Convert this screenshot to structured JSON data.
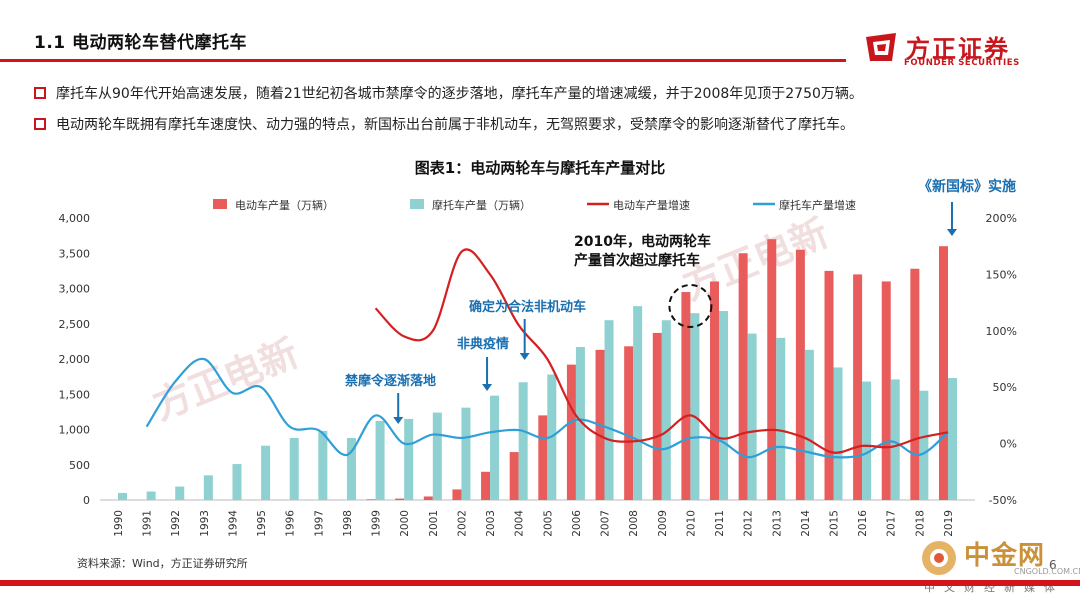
{
  "header": {
    "title": "1.1 电动两轮车替代摩托车",
    "logo_cn": "方正证券",
    "logo_en": "FOUNDER SECURITIES",
    "brand_color": "#c8161d"
  },
  "bullets": [
    "摩托车从90年代开始高速发展，随着21世纪初各城市禁摩令的逐步落地，摩托车产量的增速减缓，并于2008年见顶于2750万辆。",
    "电动两轮车既拥有摩托车速度快、动力强的特点，新国标出台前属于非机动车，无驾照要求，受禁摩令的影响逐渐替代了摩托车。"
  ],
  "chart_data": {
    "type": "bar",
    "title": "图表1：电动两轮车与摩托车产量对比",
    "categories": [
      "1990",
      "1991",
      "1992",
      "1993",
      "1994",
      "1995",
      "1996",
      "1997",
      "1998",
      "1999",
      "2000",
      "2001",
      "2002",
      "2003",
      "2004",
      "2005",
      "2006",
      "2007",
      "2008",
      "2009",
      "2010",
      "2011",
      "2012",
      "2013",
      "2014",
      "2015",
      "2016",
      "2017",
      "2018",
      "2019"
    ],
    "series": [
      {
        "name": "电动车产量（万辆）",
        "kind": "bar",
        "axis": "left",
        "color": "#e85c5c",
        "values": [
          0,
          0,
          0,
          0,
          0,
          0,
          0,
          0,
          0,
          10,
          20,
          50,
          150,
          400,
          680,
          1200,
          1920,
          2130,
          2180,
          2370,
          2950,
          3100,
          3500,
          3700,
          3550,
          3250,
          3200,
          3100,
          3280,
          3600
        ]
      },
      {
        "name": "摩托车产量（万辆）",
        "kind": "bar",
        "axis": "left",
        "color": "#8fd0d1",
        "values": [
          100,
          120,
          190,
          350,
          510,
          770,
          880,
          980,
          880,
          1120,
          1150,
          1240,
          1310,
          1480,
          1670,
          1780,
          2170,
          2550,
          2750,
          2550,
          2650,
          2680,
          2360,
          2300,
          2130,
          1880,
          1680,
          1710,
          1550,
          1730
        ]
      },
      {
        "name": "电动车产量增速",
        "kind": "line",
        "axis": "right",
        "color": "#d32020",
        "x": [
          "1999",
          "2000",
          "2001",
          "2002",
          "2003",
          "2004",
          "2005",
          "2006",
          "2007",
          "2008",
          "2009",
          "2010",
          "2011",
          "2012",
          "2013",
          "2014",
          "2015",
          "2016",
          "2017",
          "2018",
          "2019"
        ],
        "values": [
          120,
          95,
          100,
          170,
          150,
          105,
          75,
          25,
          5,
          2,
          8,
          25,
          5,
          10,
          12,
          5,
          -8,
          -2,
          -3,
          5,
          10
        ]
      },
      {
        "name": "摩托车产量增速",
        "kind": "line",
        "axis": "right",
        "color": "#2f9fd8",
        "x": [
          "1991",
          "1992",
          "1993",
          "1994",
          "1995",
          "1996",
          "1997",
          "1998",
          "1999",
          "2000",
          "2001",
          "2002",
          "2003",
          "2004",
          "2005",
          "2006",
          "2007",
          "2008",
          "2009",
          "2010",
          "2011",
          "2012",
          "2013",
          "2014",
          "2015",
          "2016",
          "2017",
          "2018",
          "2019"
        ],
        "values": [
          15,
          55,
          75,
          45,
          50,
          15,
          12,
          -10,
          25,
          0,
          8,
          5,
          10,
          12,
          5,
          21,
          15,
          5,
          -5,
          5,
          3,
          -12,
          -3,
          -7,
          -12,
          -10,
          2,
          -10,
          10
        ]
      }
    ],
    "ylim_left": [
      0,
      4000
    ],
    "yticks_left": [
      "0",
      "500",
      "1,000",
      "1,500",
      "2,000",
      "2,500",
      "3,000",
      "3,500",
      "4,000"
    ],
    "ylim_right": [
      -50,
      200
    ],
    "yticks_right": [
      "-50%",
      "0%",
      "50%",
      "100%",
      "150%",
      "200%"
    ],
    "legend_position": "top",
    "annotations": [
      {
        "id": "ban",
        "text": "禁摩令逐渐落地",
        "at": "2000"
      },
      {
        "id": "sars",
        "text": "非典疫情",
        "at": "2003"
      },
      {
        "id": "nonmotor",
        "text": "确定为合法非机动车",
        "at": "2004"
      },
      {
        "id": "exceed",
        "lines": [
          "2010年，电动两轮车",
          "产量首次超过摩托车"
        ],
        "at": "2010"
      },
      {
        "id": "standard",
        "text": "《新国标》实施",
        "at": "2019"
      }
    ],
    "watermarks": [
      "方正电新",
      "方正电新"
    ]
  },
  "footer": {
    "source": "资料来源：Wind，方正证券研究所",
    "page": "6",
    "cngold_name": "中金网",
    "cngold_url": "CNGOLD.COM.CN",
    "cngold_tag": "中文财经新媒体"
  }
}
